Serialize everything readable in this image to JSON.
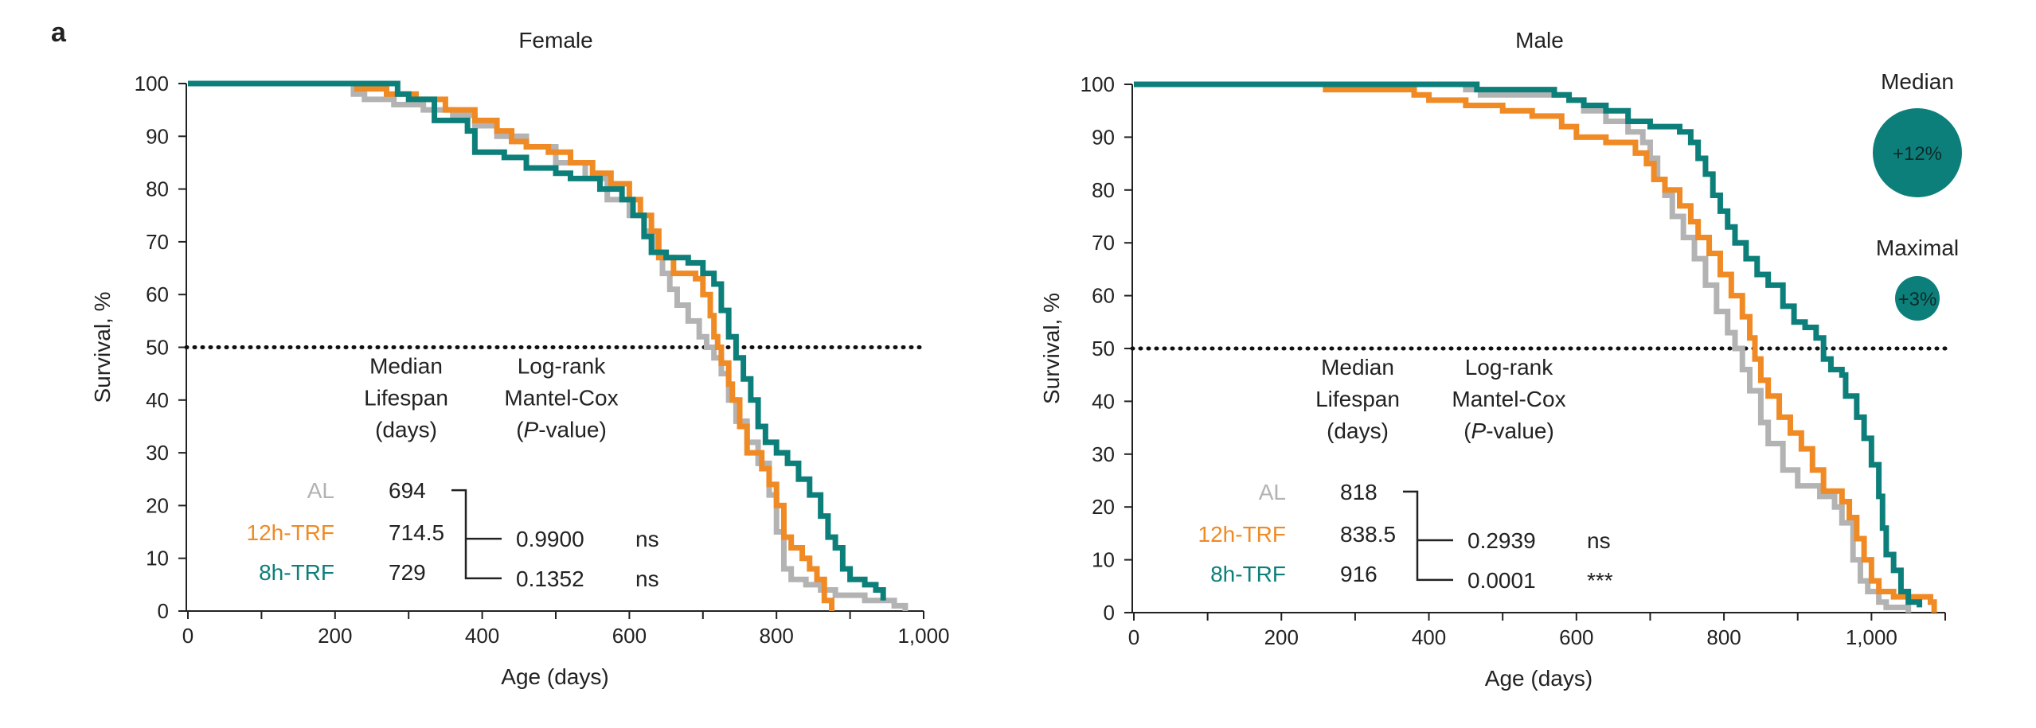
{
  "panel_label": "a",
  "colors": {
    "AL": "#b3b3b3",
    "12h-TRF": "#f08a24",
    "8h-TRF": "#0d7f7a",
    "axis": "#222222",
    "text": "#222222"
  },
  "chart_data": [
    {
      "type": "line",
      "title": "Female",
      "xlabel": "Age (days)",
      "ylabel": "Survival, %",
      "xlim": [
        0,
        1000
      ],
      "ylim": [
        0,
        100
      ],
      "xticks": [
        0,
        200,
        400,
        600,
        800,
        1000
      ],
      "xtick_labels": [
        "0",
        "200",
        "400",
        "600",
        "800",
        "1,000"
      ],
      "yticks": [
        0,
        10,
        20,
        30,
        40,
        50,
        60,
        70,
        80,
        90,
        100
      ],
      "ytick_labels": [
        "0",
        "10",
        "20",
        "30",
        "40",
        "50",
        "60",
        "70",
        "80",
        "90",
        "100"
      ],
      "reference_line": {
        "y": 50,
        "style": "dotted"
      },
      "series": [
        {
          "name": "AL",
          "step": true,
          "points": [
            [
              0,
              100
            ],
            [
              220,
              100
            ],
            [
              225,
              98
            ],
            [
              240,
              97
            ],
            [
              280,
              96
            ],
            [
              320,
              95
            ],
            [
              360,
              94
            ],
            [
              390,
              92
            ],
            [
              420,
              90
            ],
            [
              460,
              88
            ],
            [
              500,
              85
            ],
            [
              540,
              82
            ],
            [
              570,
              78
            ],
            [
              600,
              75
            ],
            [
              620,
              72
            ],
            [
              635,
              68
            ],
            [
              645,
              64
            ],
            [
              655,
              61
            ],
            [
              665,
              58
            ],
            [
              680,
              55
            ],
            [
              695,
              52
            ],
            [
              705,
              50
            ],
            [
              715,
              48
            ],
            [
              725,
              45
            ],
            [
              735,
              40
            ],
            [
              745,
              36
            ],
            [
              760,
              32
            ],
            [
              775,
              28
            ],
            [
              790,
              22
            ],
            [
              800,
              15
            ],
            [
              810,
              8
            ],
            [
              820,
              6
            ],
            [
              840,
              5
            ],
            [
              860,
              4
            ],
            [
              880,
              3
            ],
            [
              920,
              2
            ],
            [
              960,
              1
            ],
            [
              975,
              0
            ]
          ]
        },
        {
          "name": "12h-TRF",
          "step": true,
          "points": [
            [
              0,
              100
            ],
            [
              225,
              100
            ],
            [
              230,
              99
            ],
            [
              270,
              98
            ],
            [
              310,
              97
            ],
            [
              350,
              95
            ],
            [
              390,
              93
            ],
            [
              420,
              91
            ],
            [
              440,
              89
            ],
            [
              460,
              88
            ],
            [
              490,
              87
            ],
            [
              520,
              85
            ],
            [
              550,
              83
            ],
            [
              575,
              81
            ],
            [
              600,
              78
            ],
            [
              615,
              75
            ],
            [
              630,
              72
            ],
            [
              640,
              67
            ],
            [
              660,
              64
            ],
            [
              690,
              63
            ],
            [
              700,
              60
            ],
            [
              710,
              56
            ],
            [
              715,
              52
            ],
            [
              720,
              50
            ],
            [
              725,
              47
            ],
            [
              735,
              43
            ],
            [
              740,
              40
            ],
            [
              750,
              35
            ],
            [
              760,
              30
            ],
            [
              780,
              27
            ],
            [
              790,
              24
            ],
            [
              800,
              20
            ],
            [
              810,
              14
            ],
            [
              820,
              12
            ],
            [
              835,
              10
            ],
            [
              845,
              8
            ],
            [
              855,
              6
            ],
            [
              865,
              2
            ],
            [
              875,
              0
            ]
          ]
        },
        {
          "name": "8h-TRF",
          "step": true,
          "points": [
            [
              0,
              100
            ],
            [
              280,
              100
            ],
            [
              285,
              98
            ],
            [
              300,
              97
            ],
            [
              335,
              93
            ],
            [
              380,
              91
            ],
            [
              390,
              87
            ],
            [
              430,
              86
            ],
            [
              460,
              84
            ],
            [
              500,
              83
            ],
            [
              520,
              82
            ],
            [
              560,
              80
            ],
            [
              590,
              78
            ],
            [
              605,
              75
            ],
            [
              620,
              71
            ],
            [
              630,
              68
            ],
            [
              650,
              67
            ],
            [
              680,
              66
            ],
            [
              700,
              64
            ],
            [
              715,
              62
            ],
            [
              725,
              57
            ],
            [
              735,
              52
            ],
            [
              745,
              48
            ],
            [
              755,
              44
            ],
            [
              765,
              40
            ],
            [
              775,
              35
            ],
            [
              785,
              32
            ],
            [
              800,
              30
            ],
            [
              815,
              28
            ],
            [
              830,
              25
            ],
            [
              845,
              22
            ],
            [
              860,
              18
            ],
            [
              870,
              14
            ],
            [
              880,
              12
            ],
            [
              890,
              8
            ],
            [
              900,
              6
            ],
            [
              920,
              5
            ],
            [
              935,
              4
            ],
            [
              945,
              2
            ]
          ]
        }
      ],
      "table": {
        "headers": [
          [
            "Median",
            "Lifespan",
            "(days)"
          ],
          [
            "Log-rank",
            "Mantel-Cox",
            "(P-value)"
          ]
        ],
        "rows": [
          {
            "group": "AL",
            "median": "694"
          },
          {
            "group": "12h-TRF",
            "median": "714.5",
            "p_value": "0.9900",
            "significance": "ns"
          },
          {
            "group": "8h-TRF",
            "median": "729",
            "p_value": "0.1352",
            "significance": "ns"
          }
        ]
      }
    },
    {
      "type": "line",
      "title": "Male",
      "xlabel": "Age (days)",
      "ylabel": "Survival, %",
      "xlim": [
        0,
        1100
      ],
      "ylim": [
        0,
        100
      ],
      "xticks": [
        0,
        200,
        400,
        600,
        800,
        1000
      ],
      "xtick_labels": [
        "0",
        "200",
        "400",
        "600",
        "800",
        "1,000"
      ],
      "yticks": [
        0,
        10,
        20,
        30,
        40,
        50,
        60,
        70,
        80,
        90,
        100
      ],
      "ytick_labels": [
        "0",
        "10",
        "20",
        "30",
        "40",
        "50",
        "60",
        "70",
        "80",
        "90",
        "100"
      ],
      "reference_line": {
        "y": 50,
        "style": "dotted"
      },
      "series": [
        {
          "name": "AL",
          "step": true,
          "points": [
            [
              0,
              100
            ],
            [
              440,
              100
            ],
            [
              450,
              99
            ],
            [
              470,
              98
            ],
            [
              590,
              97
            ],
            [
              610,
              95
            ],
            [
              640,
              93
            ],
            [
              670,
              91
            ],
            [
              690,
              89
            ],
            [
              700,
              86
            ],
            [
              710,
              82
            ],
            [
              720,
              79
            ],
            [
              730,
              75
            ],
            [
              745,
              71
            ],
            [
              760,
              67
            ],
            [
              775,
              62
            ],
            [
              790,
              57
            ],
            [
              805,
              53
            ],
            [
              815,
              50
            ],
            [
              825,
              46
            ],
            [
              835,
              42
            ],
            [
              850,
              36
            ],
            [
              860,
              32
            ],
            [
              880,
              27
            ],
            [
              900,
              24
            ],
            [
              930,
              22
            ],
            [
              950,
              20
            ],
            [
              960,
              17
            ],
            [
              975,
              10
            ],
            [
              985,
              6
            ],
            [
              995,
              4
            ],
            [
              1010,
              2
            ],
            [
              1020,
              1
            ],
            [
              1050,
              0
            ]
          ]
        },
        {
          "name": "12h-TRF",
          "step": true,
          "points": [
            [
              0,
              100
            ],
            [
              255,
              100
            ],
            [
              260,
              99
            ],
            [
              380,
              98
            ],
            [
              400,
              97
            ],
            [
              450,
              96
            ],
            [
              500,
              95
            ],
            [
              540,
              94
            ],
            [
              580,
              92
            ],
            [
              600,
              90
            ],
            [
              640,
              89
            ],
            [
              680,
              87
            ],
            [
              695,
              85
            ],
            [
              705,
              82
            ],
            [
              720,
              80
            ],
            [
              740,
              77
            ],
            [
              755,
              74
            ],
            [
              765,
              71
            ],
            [
              780,
              68
            ],
            [
              795,
              64
            ],
            [
              810,
              60
            ],
            [
              825,
              56
            ],
            [
              835,
              52
            ],
            [
              842,
              48
            ],
            [
              850,
              44
            ],
            [
              860,
              41
            ],
            [
              875,
              37
            ],
            [
              890,
              34
            ],
            [
              905,
              31
            ],
            [
              920,
              27
            ],
            [
              935,
              23
            ],
            [
              960,
              21
            ],
            [
              970,
              18
            ],
            [
              980,
              14
            ],
            [
              990,
              10
            ],
            [
              1000,
              6
            ],
            [
              1010,
              4
            ],
            [
              1030,
              3
            ],
            [
              1080,
              2
            ],
            [
              1085,
              0
            ]
          ]
        },
        {
          "name": "8h-TRF",
          "step": true,
          "points": [
            [
              0,
              100
            ],
            [
              460,
              100
            ],
            [
              465,
              99
            ],
            [
              570,
              98
            ],
            [
              590,
              97
            ],
            [
              610,
              96
            ],
            [
              640,
              95
            ],
            [
              670,
              93
            ],
            [
              700,
              92
            ],
            [
              740,
              91
            ],
            [
              755,
              89
            ],
            [
              765,
              86
            ],
            [
              775,
              83
            ],
            [
              785,
              79
            ],
            [
              795,
              76
            ],
            [
              805,
              73
            ],
            [
              815,
              70
            ],
            [
              830,
              67
            ],
            [
              845,
              64
            ],
            [
              860,
              62
            ],
            [
              880,
              58
            ],
            [
              895,
              55
            ],
            [
              910,
              54
            ],
            [
              925,
              52
            ],
            [
              935,
              48
            ],
            [
              945,
              46
            ],
            [
              960,
              45
            ],
            [
              965,
              41
            ],
            [
              980,
              37
            ],
            [
              990,
              33
            ],
            [
              1000,
              28
            ],
            [
              1010,
              22
            ],
            [
              1015,
              16
            ],
            [
              1020,
              11
            ],
            [
              1030,
              8
            ],
            [
              1040,
              4
            ],
            [
              1050,
              2
            ],
            [
              1065,
              1
            ]
          ]
        }
      ],
      "table": {
        "headers": [
          [
            "Median",
            "Lifespan",
            "(days)"
          ],
          [
            "Log-rank",
            "Mantel-Cox",
            "(P-value)"
          ]
        ],
        "rows": [
          {
            "group": "AL",
            "median": "818"
          },
          {
            "group": "12h-TRF",
            "median": "838.5",
            "p_value": "0.2939",
            "significance": "ns"
          },
          {
            "group": "8h-TRF",
            "median": "916",
            "p_value": "0.0001",
            "significance": "***"
          }
        ]
      },
      "bubbles": [
        {
          "label": "Median",
          "value": "+12%",
          "size": 12
        },
        {
          "label": "Maximal",
          "value": "+3%",
          "size": 3
        }
      ]
    }
  ]
}
